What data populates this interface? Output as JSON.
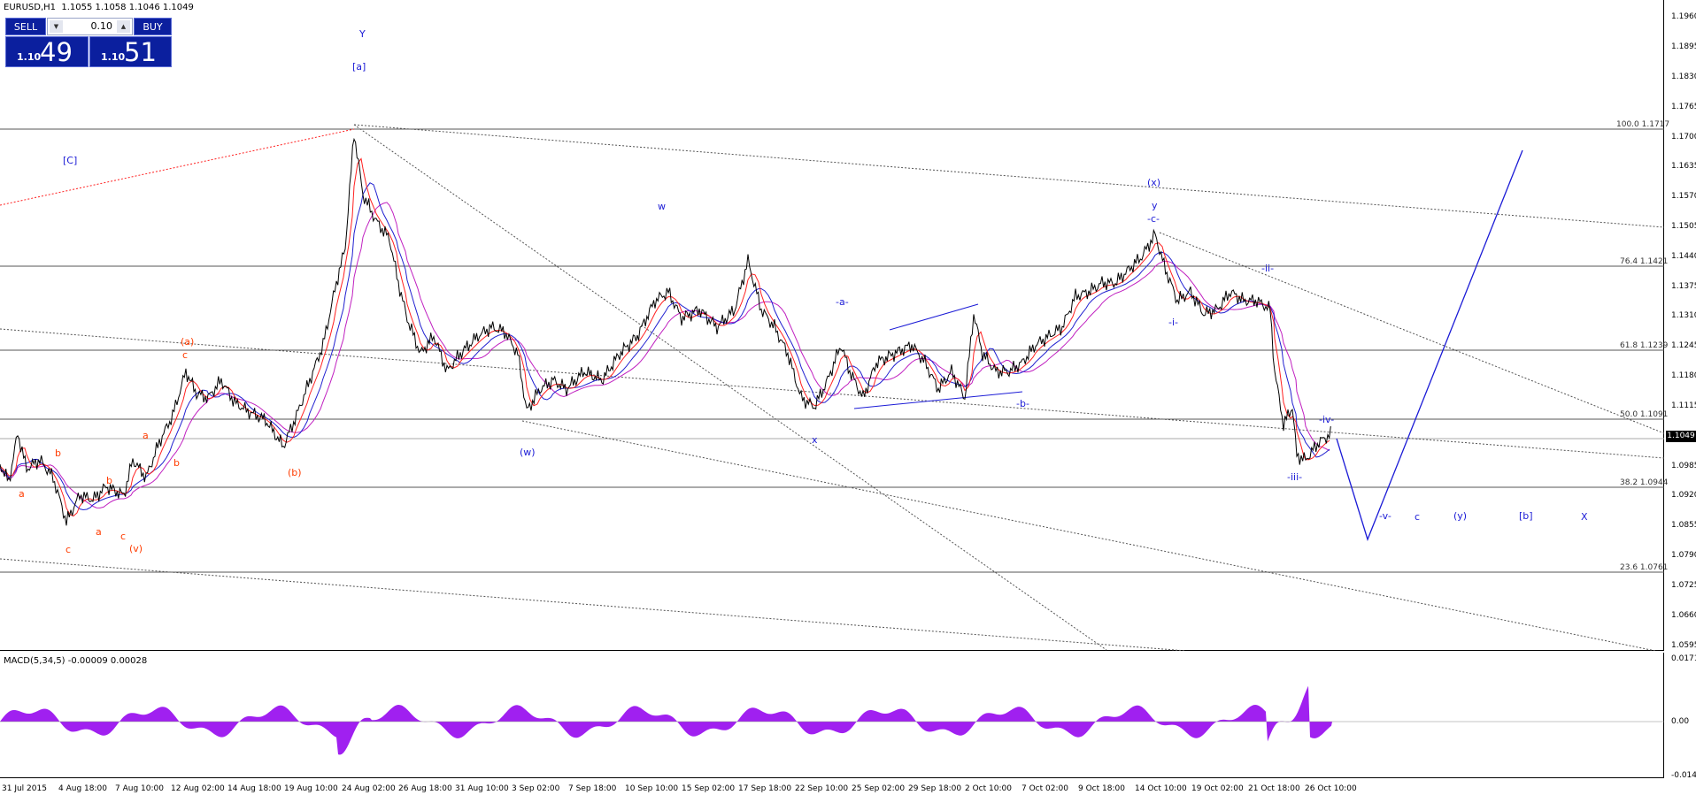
{
  "chart": {
    "title": "EURUSD,H1  1.1055 1.1058 1.1046 1.1049",
    "current_price": "1.1049",
    "y_axis": [
      "1.1960",
      "1.1895",
      "1.1830",
      "1.1765",
      "1.1700",
      "1.1635",
      "1.1570",
      "1.1505",
      "1.1440",
      "1.1375",
      "1.1310",
      "1.1245",
      "1.1180",
      "1.1115",
      "1.1049",
      "1.0985",
      "1.0920",
      "1.0855",
      "1.0790",
      "1.0725",
      "1.0660",
      "1.0595"
    ],
    "x_axis": [
      "31 Jul 2015",
      "4 Aug 18:00",
      "7 Aug 10:00",
      "12 Aug 02:00",
      "14 Aug 18:00",
      "19 Aug 10:00",
      "24 Aug 02:00",
      "26 Aug 18:00",
      "31 Aug 10:00",
      "3 Sep 02:00",
      "7 Sep 18:00",
      "10 Sep 10:00",
      "15 Sep 02:00",
      "17 Sep 18:00",
      "22 Sep 10:00",
      "25 Sep 02:00",
      "29 Sep 18:00",
      "2 Oct 10:00",
      "7 Oct 02:00",
      "9 Oct 18:00",
      "14 Oct 10:00",
      "19 Oct 02:00",
      "21 Oct 18:00",
      "26 Oct 10:00"
    ],
    "fib_levels": [
      {
        "label": "100.0 1.1717",
        "price": 1.1717
      },
      {
        "label": "76.4 1.1421",
        "price": 1.1421
      },
      {
        "label": "61.8 1.1239",
        "price": 1.1239
      },
      {
        "label": "50.0 1.1091",
        "price": 1.1091
      },
      {
        "label": "38.2 1.0944",
        "price": 1.0944
      },
      {
        "label": "23.6 1.0761",
        "price": 1.0761
      }
    ],
    "wave_labels_blue": [
      "Y",
      "[a]",
      "[C]",
      "w",
      "(w)",
      "x",
      "-a-",
      "-b-",
      "(x)",
      "y",
      "-c-",
      "-i-",
      "-ii-",
      "-iii-",
      "-iv-",
      "-v-",
      "c",
      "(y)",
      "[b]",
      "X"
    ],
    "wave_labels_red": [
      "(a)",
      "c",
      "a",
      "b",
      "b",
      "a",
      "c",
      "c",
      "(v)",
      "a",
      "b",
      "(b)"
    ]
  },
  "macd": {
    "title": "MACD(5,34,5) -0.00009 0.00028",
    "y_axis": [
      "0.01714",
      "0.00",
      "-0.01477"
    ],
    "color": "#a020f0"
  },
  "trade_panel": {
    "sell_label": "SELL",
    "buy_label": "BUY",
    "lot": "0.10",
    "lot_down": "▼",
    "lot_up": "▲",
    "sell_small": "1.10",
    "sell_big": "49",
    "buy_small": "1.10",
    "buy_big": "51"
  }
}
